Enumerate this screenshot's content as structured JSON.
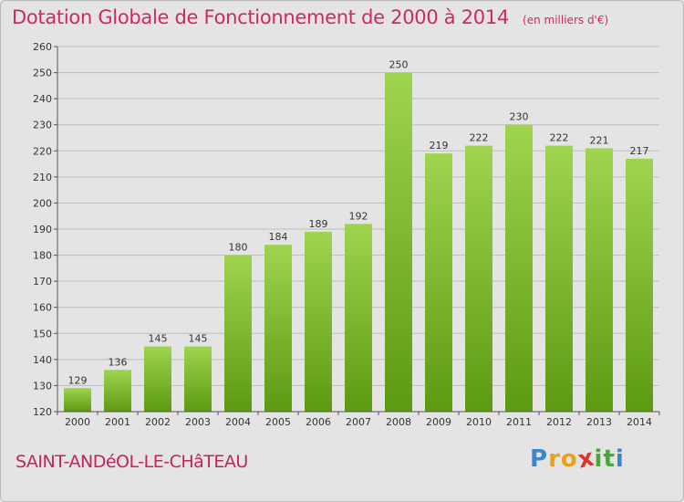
{
  "header": {
    "title": "Dotation Globale de Fonctionnement de 2000 à 2014",
    "unit": "(en milliers d'€)"
  },
  "footer": {
    "commune": "SAINT-ANDéOL-LE-CHâTEAU",
    "brand_letters": [
      "P",
      "r",
      "o",
      "x",
      "i",
      "t",
      "i"
    ],
    "brand_colors": [
      "#3a86c8",
      "#e8a21a",
      "#e8a21a",
      "#d9362b",
      "#4aa63c",
      "#4aa63c",
      "#3a86c8"
    ]
  },
  "colors": {
    "bar_top": "#9fd44f",
    "bar_bottom": "#5c9a12",
    "grid": "#bdbdbd",
    "axis": "#555555",
    "plot_bg": "#e4e4e4"
  },
  "chart_data": {
    "type": "bar",
    "title": "Dotation Globale de Fonctionnement de 2000 à 2014",
    "xlabel": "",
    "ylabel": "",
    "categories": [
      "2000",
      "2001",
      "2002",
      "2003",
      "2004",
      "2005",
      "2006",
      "2007",
      "2008",
      "2009",
      "2010",
      "2011",
      "2012",
      "2013",
      "2014"
    ],
    "values": [
      129,
      136,
      145,
      145,
      180,
      184,
      189,
      192,
      250,
      219,
      222,
      230,
      222,
      221,
      217
    ],
    "ylim": [
      120,
      260
    ],
    "yticks": [
      120,
      130,
      140,
      150,
      160,
      170,
      180,
      190,
      200,
      210,
      220,
      230,
      240,
      250,
      260
    ],
    "grid": true
  }
}
